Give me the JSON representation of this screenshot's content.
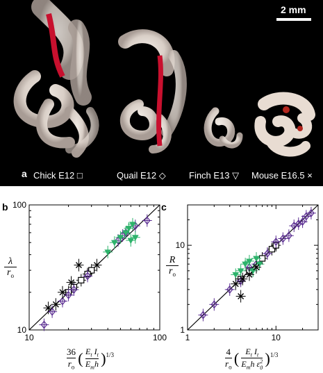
{
  "panel_a": {
    "letter": "a",
    "scale_bar": "2 mm",
    "species": [
      {
        "label": "Chick E12",
        "symbol": "□"
      },
      {
        "label": "Quail E12",
        "symbol": "◇"
      },
      {
        "label": "Finch E13",
        "symbol": "▽"
      },
      {
        "label": "Mouse E16.5",
        "symbol": "×"
      }
    ]
  },
  "panel_b": {
    "letter": "b",
    "ylabel_top": "λ",
    "ylabel_bottom": "r",
    "ylabel_bottom_sub": "o",
    "xlabel_coef": "36",
    "xlabel_r": "r",
    "xlabel_r_sub": "o",
    "xlabel_num": "E",
    "xlabel_num_sub": "t",
    "xlabel_num2": "I",
    "xlabel_num2_sub": "t",
    "xlabel_den": "E",
    "xlabel_den_sub": "m",
    "xlabel_den2": "h",
    "xlabel_exp": "1/3",
    "tick_labels": {
      "x": [
        "10",
        "100"
      ],
      "y": [
        "10",
        "100"
      ]
    }
  },
  "panel_c": {
    "letter": "c",
    "ylabel_top": "R",
    "ylabel_bottom": "r",
    "ylabel_bottom_sub": "o",
    "xlabel_coef": "4",
    "xlabel_r": "r",
    "xlabel_r_sub": "o",
    "xlabel_num": "E",
    "xlabel_num_sub": "t",
    "xlabel_num2": "I",
    "xlabel_num2_sub": "t",
    "xlabel_den": "E",
    "xlabel_den_sub": "m",
    "xlabel_den2": "h ε",
    "xlabel_den2_sup": "2",
    "xlabel_den2_sub": "0",
    "xlabel_exp": "1/3",
    "tick_labels": {
      "x": [
        "1",
        "10"
      ],
      "y": [
        "1",
        "10"
      ]
    }
  },
  "colors": {
    "chick": "#000000",
    "quail": "#5a2d91",
    "finch": "#2db36b",
    "mouse": "#000000",
    "gut_red": "#c8102e"
  },
  "chart_data": [
    {
      "type": "scatter",
      "panel": "b",
      "xscale": "log",
      "yscale": "log",
      "xlim": [
        10,
        100
      ],
      "ylim": [
        10,
        100
      ],
      "reference_line": "y = x",
      "series": [
        {
          "name": "Chick E12",
          "marker": "square",
          "color": "#000000",
          "points": [
            [
              20,
              20
            ],
            [
              22,
              22
            ],
            [
              25,
              25
            ],
            [
              30,
              30
            ],
            [
              28,
              28
            ]
          ]
        },
        {
          "name": "Quail E12",
          "marker": "diamond",
          "color": "#5a2d91",
          "points": [
            [
              13,
              11
            ],
            [
              15,
              14
            ],
            [
              18,
              17
            ],
            [
              20,
              19
            ],
            [
              22,
              21
            ],
            [
              28,
              27
            ],
            [
              48,
              52
            ],
            [
              52,
              57
            ],
            [
              55,
              60
            ],
            [
              65,
              68
            ],
            [
              80,
              75
            ]
          ]
        },
        {
          "name": "Finch E13",
          "marker": "triangle-down",
          "color": "#2db36b",
          "points": [
            [
              40,
              42
            ],
            [
              45,
              50
            ],
            [
              50,
              55
            ],
            [
              55,
              60
            ],
            [
              58,
              65
            ],
            [
              60,
              52
            ],
            [
              62,
              70
            ],
            [
              65,
              55
            ]
          ]
        },
        {
          "name": "Mouse E16.5",
          "marker": "x",
          "color": "#000000",
          "points": [
            [
              14,
              15
            ],
            [
              16,
              16
            ],
            [
              18,
              20
            ],
            [
              21,
              24
            ],
            [
              24,
              33
            ],
            [
              33,
              33
            ]
          ]
        }
      ]
    },
    {
      "type": "scatter",
      "panel": "c",
      "xscale": "log",
      "yscale": "log",
      "xlim": [
        1,
        30
      ],
      "ylim": [
        1,
        30
      ],
      "reference_line": "y = x",
      "series": [
        {
          "name": "Chick E12",
          "marker": "square",
          "color": "#000000",
          "points": [
            [
              4,
              4
            ],
            [
              5,
              5
            ],
            [
              7,
              7
            ],
            [
              9,
              9
            ],
            [
              10,
              10
            ]
          ]
        },
        {
          "name": "Quail E12",
          "marker": "diamond",
          "color": "#5a2d91",
          "points": [
            [
              1.5,
              1.5
            ],
            [
              2,
              2
            ],
            [
              3,
              3
            ],
            [
              4,
              3.8
            ],
            [
              5,
              5.5
            ],
            [
              6,
              6
            ],
            [
              8,
              8
            ],
            [
              10,
              11
            ],
            [
              12,
              12
            ],
            [
              14,
              13
            ],
            [
              16,
              17
            ],
            [
              18,
              18
            ],
            [
              20,
              19
            ],
            [
              22,
              22
            ],
            [
              25,
              24
            ]
          ]
        },
        {
          "name": "Finch E13",
          "marker": "triangle-down",
          "color": "#2db36b",
          "points": [
            [
              3.5,
              4.5
            ],
            [
              4,
              5
            ],
            [
              4.5,
              6
            ],
            [
              5,
              6.5
            ],
            [
              5.5,
              5
            ],
            [
              6,
              7
            ],
            [
              6.5,
              6
            ]
          ]
        },
        {
          "name": "Mouse E16.5",
          "marker": "x",
          "color": "#000000",
          "points": [
            [
              3.5,
              3.5
            ],
            [
              4,
              2.5
            ],
            [
              4.2,
              4
            ],
            [
              5,
              4.5
            ],
            [
              6,
              5.5
            ]
          ]
        }
      ]
    }
  ]
}
